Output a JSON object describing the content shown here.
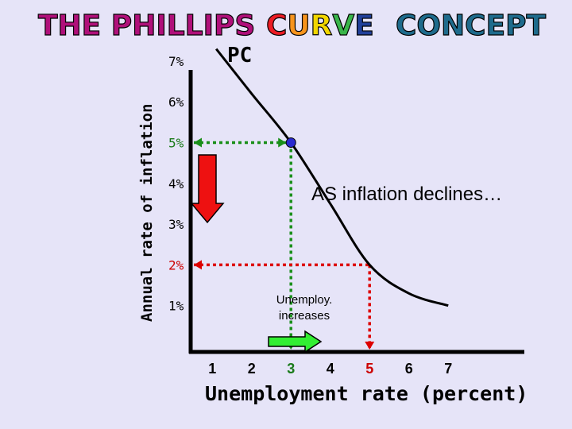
{
  "title": {
    "parts": [
      {
        "text": "THE PHILLIPS",
        "color": "#b0107a"
      },
      {
        "text": "CURVE",
        "colors": [
          "#ec1c24",
          "#f7941d",
          "#f2d600",
          "#39b54a",
          "#21409a"
        ]
      },
      {
        "text": "CONCEPT",
        "color": "#1e6b8c"
      }
    ]
  },
  "chart_data": {
    "type": "line",
    "ylabel": "Annual rate of inflation",
    "xlabel": "Unemployment rate (percent)",
    "curve_label": "PC",
    "yticks": [
      {
        "label": "7%",
        "value": 7,
        "color": "#000000"
      },
      {
        "label": "6%",
        "value": 6,
        "color": "#000000"
      },
      {
        "label": "5%",
        "value": 5,
        "color": "#1a7a1a"
      },
      {
        "label": "4%",
        "value": 4,
        "color": "#000000"
      },
      {
        "label": "3%",
        "value": 3,
        "color": "#000000"
      },
      {
        "label": "2%",
        "value": 2,
        "color": "#cc0000"
      },
      {
        "label": "1%",
        "value": 1,
        "color": "#000000"
      }
    ],
    "xticks": [
      {
        "label": "1",
        "value": 1,
        "color": "#000000"
      },
      {
        "label": "2",
        "value": 2,
        "color": "#000000"
      },
      {
        "label": "3",
        "value": 3,
        "color": "#1a7a1a"
      },
      {
        "label": "4",
        "value": 4,
        "color": "#000000"
      },
      {
        "label": "5",
        "value": 5,
        "color": "#cc0000"
      },
      {
        "label": "6",
        "value": 6,
        "color": "#000000"
      },
      {
        "label": "7",
        "value": 7,
        "color": "#000000"
      }
    ],
    "curve_points": [
      [
        1.1,
        7.3
      ],
      [
        2.0,
        6.2
      ],
      [
        3.0,
        5.0
      ],
      [
        4.0,
        3.5
      ],
      [
        5.0,
        2.0
      ],
      [
        6.0,
        1.3
      ],
      [
        7.0,
        1.0
      ]
    ],
    "marked_point": {
      "x": 3,
      "y": 5
    },
    "guides": [
      {
        "x": 3,
        "y": 5,
        "color": "#1a8f1a"
      },
      {
        "x": 5,
        "y": 2,
        "color": "#dd0000"
      }
    ],
    "annotations": {
      "inflation_text": "AS inflation declines…",
      "unemployment_text_line1": "Unemploy.",
      "unemployment_text_line2": "increases"
    },
    "colors": {
      "axis": "#000000",
      "curve": "#000000",
      "point": "#2a2ad0",
      "down_arrow": "#ee1111",
      "right_arrow": "#33ee33"
    }
  }
}
